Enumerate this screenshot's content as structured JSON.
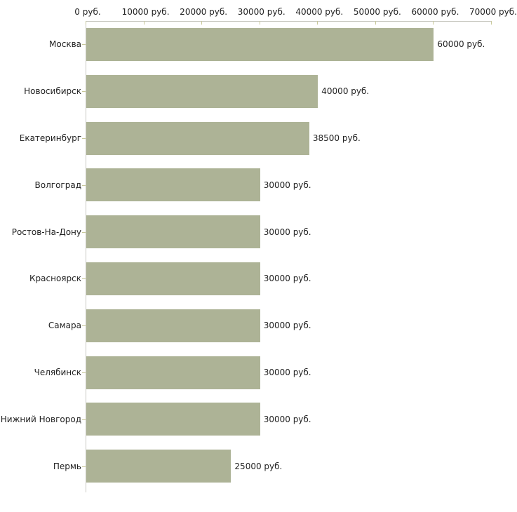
{
  "chart_data": {
    "type": "bar",
    "orientation": "horizontal",
    "title": "",
    "xlabel": "",
    "ylabel": "",
    "categories": [
      "Москва",
      "Новосибирск",
      "Екатеринбург",
      "Волгоград",
      "Ростов-На-Дону",
      "Красноярск",
      "Самара",
      "Челябинск",
      "Нижний Новгород",
      "Пермь"
    ],
    "values": [
      60000,
      40000,
      38500,
      30000,
      30000,
      30000,
      30000,
      30000,
      30000,
      25000
    ],
    "bar_labels": [
      "60000 руб.",
      "40000 руб.",
      "38500 руб.",
      "30000 руб.",
      "30000 руб.",
      "30000 руб.",
      "30000 руб.",
      "30000 руб.",
      "30000 руб.",
      "25000 руб."
    ],
    "xlim": [
      0,
      70000
    ],
    "x_ticks": [
      0,
      10000,
      20000,
      30000,
      40000,
      50000,
      60000,
      70000
    ],
    "x_tick_labels": [
      "0 руб.",
      "10000 руб.",
      "20000 руб.",
      "30000 руб.",
      "40000 руб.",
      "50000 руб.",
      "60000 руб.",
      "70000 руб."
    ],
    "axis_position": "top",
    "grid": false,
    "legend": false,
    "colors": {
      "bar_fill": "#adb396",
      "axis_line": "#c9c9c2",
      "tick_mark": "#c8c89a",
      "text": "#222222",
      "background": "#ffffff"
    }
  }
}
